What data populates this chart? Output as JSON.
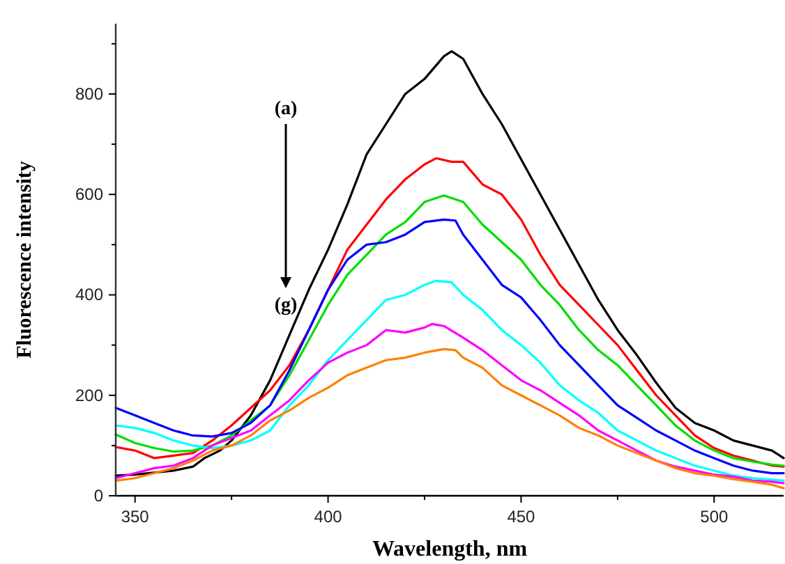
{
  "chart_data": {
    "type": "line",
    "xlabel": "Wavelength, nm",
    "ylabel": "Fluorescence intensity",
    "xlim": [
      345,
      518
    ],
    "ylim": [
      0,
      940
    ],
    "xticks": [
      350,
      {
        "value": 375,
        "label": null
      },
      400,
      {
        "value": 425,
        "label": null
      },
      450,
      {
        "value": 475,
        "label": null
      },
      500
    ],
    "yticks": [
      0,
      {
        "value": 100,
        "label": null
      },
      200,
      {
        "value": 300,
        "label": null
      },
      400,
      {
        "value": 500,
        "label": null
      },
      600,
      {
        "value": 700,
        "label": null
      },
      800,
      {
        "value": 900,
        "label": null
      }
    ],
    "grid": false,
    "marker": "none",
    "line_style": "solid",
    "annotations": [
      "(a)",
      "(g)"
    ],
    "series": [
      {
        "color": "#000000",
        "x": [
          345,
          350,
          360,
          365,
          368,
          372,
          375,
          380,
          385,
          390,
          395,
          400,
          405,
          410,
          415,
          420,
          425,
          430,
          432,
          435,
          440,
          445,
          450,
          455,
          460,
          465,
          470,
          475,
          480,
          485,
          490,
          495,
          500,
          505,
          510,
          515,
          518
        ],
        "values": [
          40,
          42,
          50,
          58,
          75,
          90,
          110,
          160,
          230,
          320,
          410,
          490,
          580,
          680,
          740,
          800,
          830,
          875,
          885,
          870,
          800,
          740,
          670,
          600,
          530,
          460,
          390,
          330,
          280,
          225,
          175,
          145,
          130,
          110,
          100,
          90,
          75
        ]
      },
      {
        "color": "#ff0000",
        "x": [
          345,
          350,
          355,
          360,
          365,
          370,
          375,
          380,
          385,
          390,
          395,
          400,
          405,
          410,
          415,
          420,
          425,
          428,
          432,
          435,
          440,
          445,
          450,
          455,
          460,
          465,
          470,
          475,
          480,
          485,
          490,
          495,
          500,
          505,
          510,
          515,
          518
        ],
        "values": [
          97,
          90,
          75,
          80,
          85,
          110,
          140,
          175,
          210,
          260,
          330,
          410,
          490,
          540,
          590,
          630,
          660,
          672,
          665,
          665,
          620,
          600,
          550,
          480,
          420,
          380,
          340,
          300,
          250,
          200,
          160,
          120,
          95,
          80,
          70,
          60,
          58
        ]
      },
      {
        "color": "#00dd00",
        "x": [
          345,
          350,
          355,
          360,
          365,
          370,
          375,
          380,
          385,
          390,
          395,
          400,
          405,
          410,
          415,
          420,
          425,
          430,
          435,
          440,
          445,
          450,
          455,
          460,
          465,
          470,
          475,
          480,
          485,
          490,
          495,
          500,
          505,
          510,
          515,
          518
        ],
        "values": [
          122,
          105,
          95,
          88,
          90,
          100,
          120,
          150,
          180,
          240,
          310,
          380,
          440,
          480,
          520,
          545,
          585,
          598,
          585,
          540,
          505,
          470,
          420,
          380,
          330,
          290,
          260,
          220,
          180,
          140,
          110,
          90,
          75,
          68,
          62,
          60
        ]
      },
      {
        "color": "#0000ff",
        "x": [
          345,
          350,
          355,
          360,
          365,
          370,
          375,
          380,
          385,
          390,
          395,
          400,
          405,
          410,
          415,
          420,
          425,
          430,
          433,
          435,
          440,
          445,
          450,
          455,
          460,
          465,
          470,
          475,
          480,
          485,
          490,
          495,
          500,
          505,
          510,
          515,
          518
        ],
        "values": [
          175,
          160,
          145,
          130,
          120,
          118,
          125,
          145,
          180,
          250,
          330,
          410,
          470,
          500,
          505,
          520,
          545,
          550,
          548,
          520,
          470,
          420,
          395,
          350,
          300,
          260,
          220,
          180,
          155,
          130,
          110,
          90,
          75,
          60,
          50,
          45,
          45
        ]
      },
      {
        "color": "#00ffff",
        "x": [
          345,
          350,
          355,
          360,
          365,
          370,
          375,
          380,
          385,
          390,
          395,
          400,
          405,
          410,
          415,
          420,
          425,
          428,
          432,
          435,
          440,
          445,
          450,
          455,
          460,
          465,
          470,
          475,
          480,
          485,
          490,
          495,
          500,
          505,
          510,
          515,
          518
        ],
        "values": [
          140,
          135,
          125,
          110,
          100,
          95,
          100,
          110,
          130,
          180,
          220,
          270,
          310,
          350,
          390,
          400,
          420,
          428,
          425,
          400,
          370,
          330,
          300,
          265,
          220,
          190,
          165,
          130,
          110,
          90,
          75,
          60,
          50,
          40,
          35,
          32,
          30
        ]
      },
      {
        "color": "#ff00ff",
        "x": [
          345,
          350,
          355,
          360,
          365,
          370,
          375,
          380,
          385,
          390,
          395,
          400,
          405,
          410,
          415,
          420,
          425,
          427,
          430,
          435,
          440,
          445,
          450,
          455,
          460,
          465,
          470,
          475,
          480,
          485,
          490,
          495,
          500,
          505,
          510,
          515,
          518
        ],
        "values": [
          35,
          45,
          55,
          60,
          75,
          100,
          115,
          130,
          160,
          190,
          230,
          265,
          285,
          300,
          330,
          325,
          335,
          342,
          338,
          315,
          290,
          260,
          230,
          210,
          185,
          160,
          130,
          110,
          90,
          70,
          58,
          50,
          42,
          38,
          30,
          28,
          25
        ]
      },
      {
        "color": "#ff8000",
        "x": [
          345,
          350,
          355,
          360,
          365,
          370,
          375,
          380,
          385,
          390,
          395,
          400,
          405,
          410,
          415,
          420,
          425,
          430,
          433,
          435,
          440,
          445,
          450,
          455,
          460,
          465,
          470,
          475,
          480,
          485,
          490,
          495,
          500,
          505,
          510,
          515,
          518
        ],
        "values": [
          30,
          35,
          45,
          55,
          70,
          90,
          100,
          120,
          150,
          170,
          195,
          215,
          240,
          255,
          270,
          275,
          285,
          292,
          290,
          275,
          255,
          220,
          200,
          180,
          160,
          135,
          120,
          100,
          85,
          70,
          55,
          45,
          40,
          33,
          28,
          22,
          15
        ]
      }
    ]
  }
}
